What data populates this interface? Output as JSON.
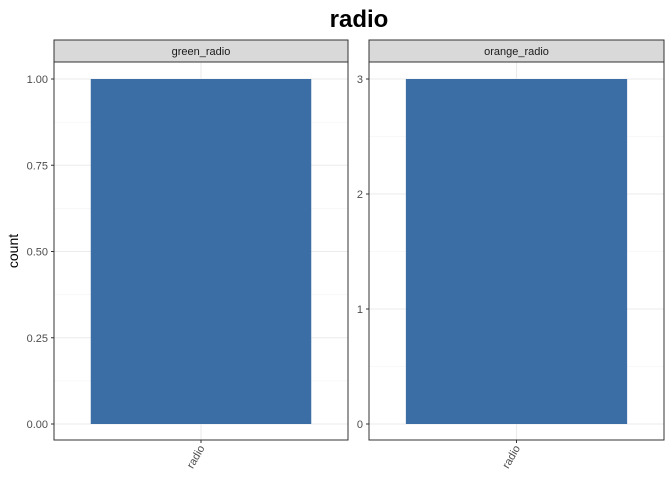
{
  "chart_data": {
    "type": "bar",
    "title": "radio",
    "ylabel": "count",
    "xlabel": "",
    "bar_color": "#3A6EA5",
    "strip_color": "#D9D9D9",
    "grid": true,
    "panels": [
      {
        "name": "green_radio",
        "categories": [
          "radio"
        ],
        "values": [
          1
        ],
        "ylim": [
          0,
          1
        ],
        "yticks": [
          0,
          0.25,
          0.5,
          0.75,
          1
        ],
        "ytick_labels": [
          "0.00",
          "0.25",
          "0.50",
          "0.75",
          "1.00"
        ]
      },
      {
        "name": "orange_radio",
        "categories": [
          "radio"
        ],
        "values": [
          3
        ],
        "ylim": [
          0,
          3
        ],
        "yticks": [
          0,
          1,
          2,
          3
        ],
        "ytick_labels": [
          "0",
          "1",
          "2",
          "3"
        ]
      }
    ]
  }
}
